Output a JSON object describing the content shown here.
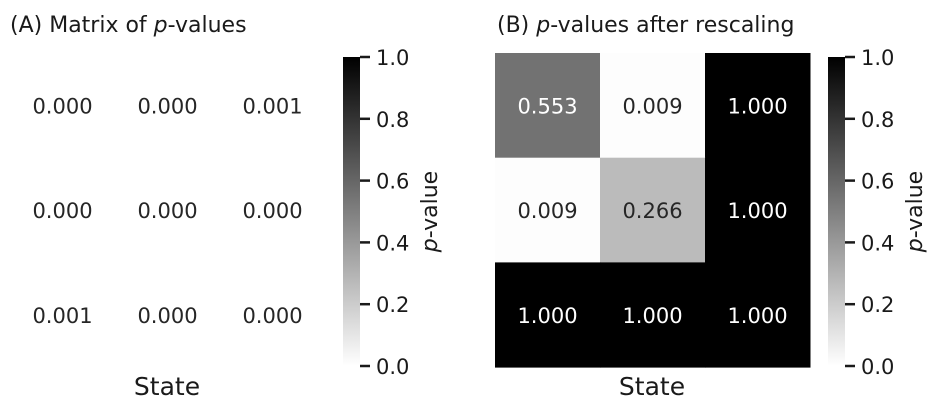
{
  "chart_data": [
    {
      "type": "heatmap",
      "title": "(A) Matrix of p-values",
      "title_prefix": "(A) Matrix of ",
      "title_italic": "p",
      "title_suffix": "-values",
      "xlabel": "State",
      "values": [
        [
          0.0,
          0.0,
          0.001
        ],
        [
          0.0,
          0.0,
          0.0
        ],
        [
          0.001,
          0.0,
          0.0
        ]
      ],
      "cell_labels": [
        [
          "0.000",
          "0.000",
          "0.001"
        ],
        [
          "0.000",
          "0.000",
          "0.000"
        ],
        [
          "0.001",
          "0.000",
          "0.000"
        ]
      ],
      "colormap": "grayscale white-to-black",
      "vmin": 0.0,
      "vmax": 1.0,
      "colorbar": {
        "label": "p-value",
        "label_italic": "p",
        "label_suffix": "-value",
        "ticks": [
          "0.0",
          "0.2",
          "0.4",
          "0.6",
          "0.8",
          "1.0"
        ]
      }
    },
    {
      "type": "heatmap",
      "title": "(B) p-values after rescaling",
      "title_prefix": "(B) ",
      "title_italic": "p",
      "title_suffix": "-values after rescaling",
      "xlabel": "State",
      "values": [
        [
          0.553,
          0.009,
          1.0
        ],
        [
          0.009,
          0.266,
          1.0
        ],
        [
          1.0,
          1.0,
          1.0
        ]
      ],
      "cell_labels": [
        [
          "0.553",
          "0.009",
          "1.000"
        ],
        [
          "0.009",
          "0.266",
          "1.000"
        ],
        [
          "1.000",
          "1.000",
          "1.000"
        ]
      ],
      "colormap": "grayscale white-to-black",
      "vmin": 0.0,
      "vmax": 1.0,
      "colorbar": {
        "label": "p-value",
        "label_italic": "p",
        "label_suffix": "-value",
        "ticks": [
          "0.0",
          "0.2",
          "0.4",
          "0.6",
          "0.8",
          "1.0"
        ]
      }
    }
  ]
}
